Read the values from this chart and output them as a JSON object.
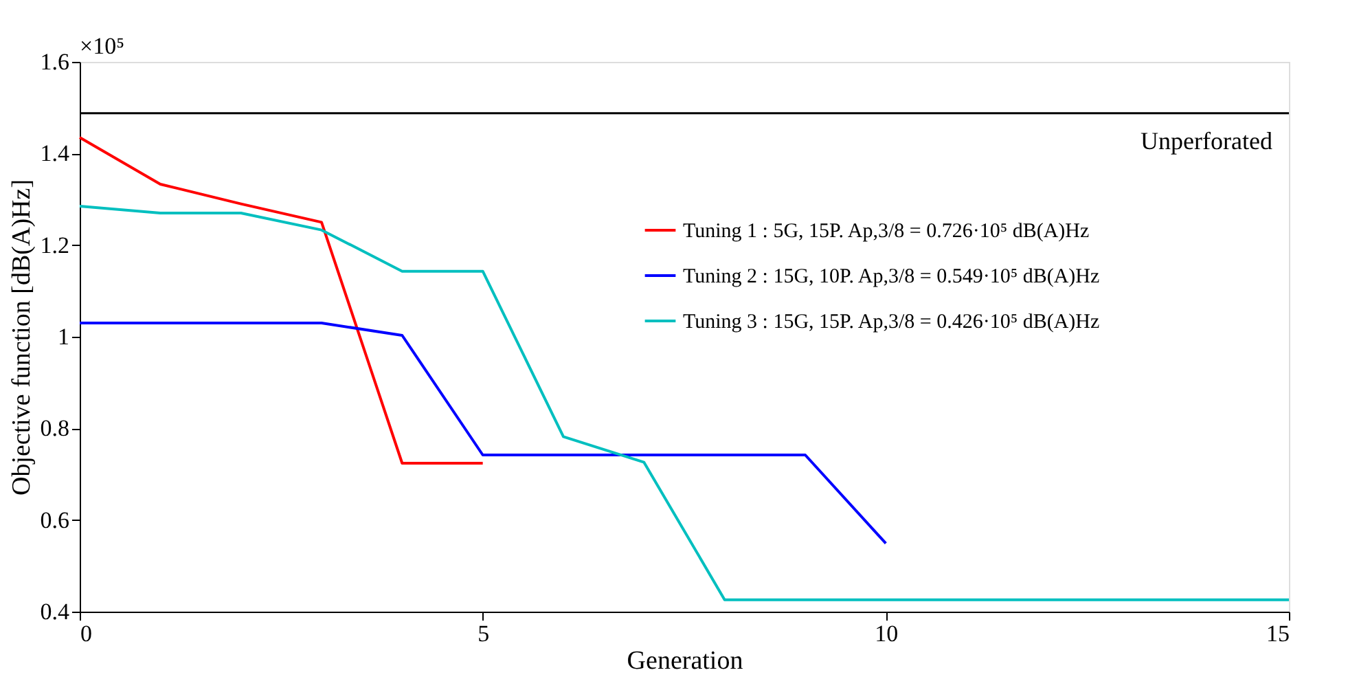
{
  "chart_data": {
    "type": "line",
    "xlabel": "Generation",
    "ylabel": "Objective function [dB(A)Hz]",
    "annotations": [
      "×10⁵"
    ],
    "xlim": [
      0,
      15
    ],
    "xticks": [
      0,
      5,
      10,
      15
    ],
    "ylim": [
      0.4,
      1.6
    ],
    "yticks": [
      0.4,
      0.6,
      0.8,
      1,
      1.2,
      1.4,
      1.6
    ],
    "grid": false,
    "legend": "right",
    "line_style": "solid",
    "marker": "none",
    "series": [
      {
        "name": "Tuning 1 : 5G, 15P.  Ap,3/8 = 0.726·10⁵ dB(A)Hz",
        "color": "#ff0000",
        "x": [
          0,
          1,
          2,
          3,
          4,
          5
        ],
        "values": [
          1.435,
          1.333,
          1.29,
          1.25,
          0.724,
          0.724
        ]
      },
      {
        "name": "Tuning 2 : 15G, 10P.  Ap,3/8 = 0.549·10⁵ dB(A)Hz",
        "color": "#0000ff",
        "x": [
          0,
          1,
          2,
          3,
          4,
          5,
          6,
          7,
          8,
          9,
          10
        ],
        "values": [
          1.03,
          1.03,
          1.03,
          1.03,
          1.003,
          0.742,
          0.742,
          0.742,
          0.742,
          0.742,
          0.549
        ]
      },
      {
        "name": "Tuning 3 : 15G, 15P.  Ap,3/8 = 0.426·10⁵ dB(A)Hz",
        "color": "#00bfbf",
        "x": [
          0,
          1,
          2,
          3,
          4,
          5,
          6,
          7,
          8,
          9,
          10,
          11,
          12,
          13,
          14,
          15
        ],
        "values": [
          1.285,
          1.27,
          1.27,
          1.233,
          1.143,
          1.143,
          0.782,
          0.726,
          0.426,
          0.426,
          0.426,
          0.426,
          0.426,
          0.426,
          0.426,
          0.426
        ]
      }
    ],
    "ref_lines": [
      {
        "axis": "y",
        "value": 1.488,
        "label": "Unperforated",
        "color": "#000000"
      }
    ]
  }
}
